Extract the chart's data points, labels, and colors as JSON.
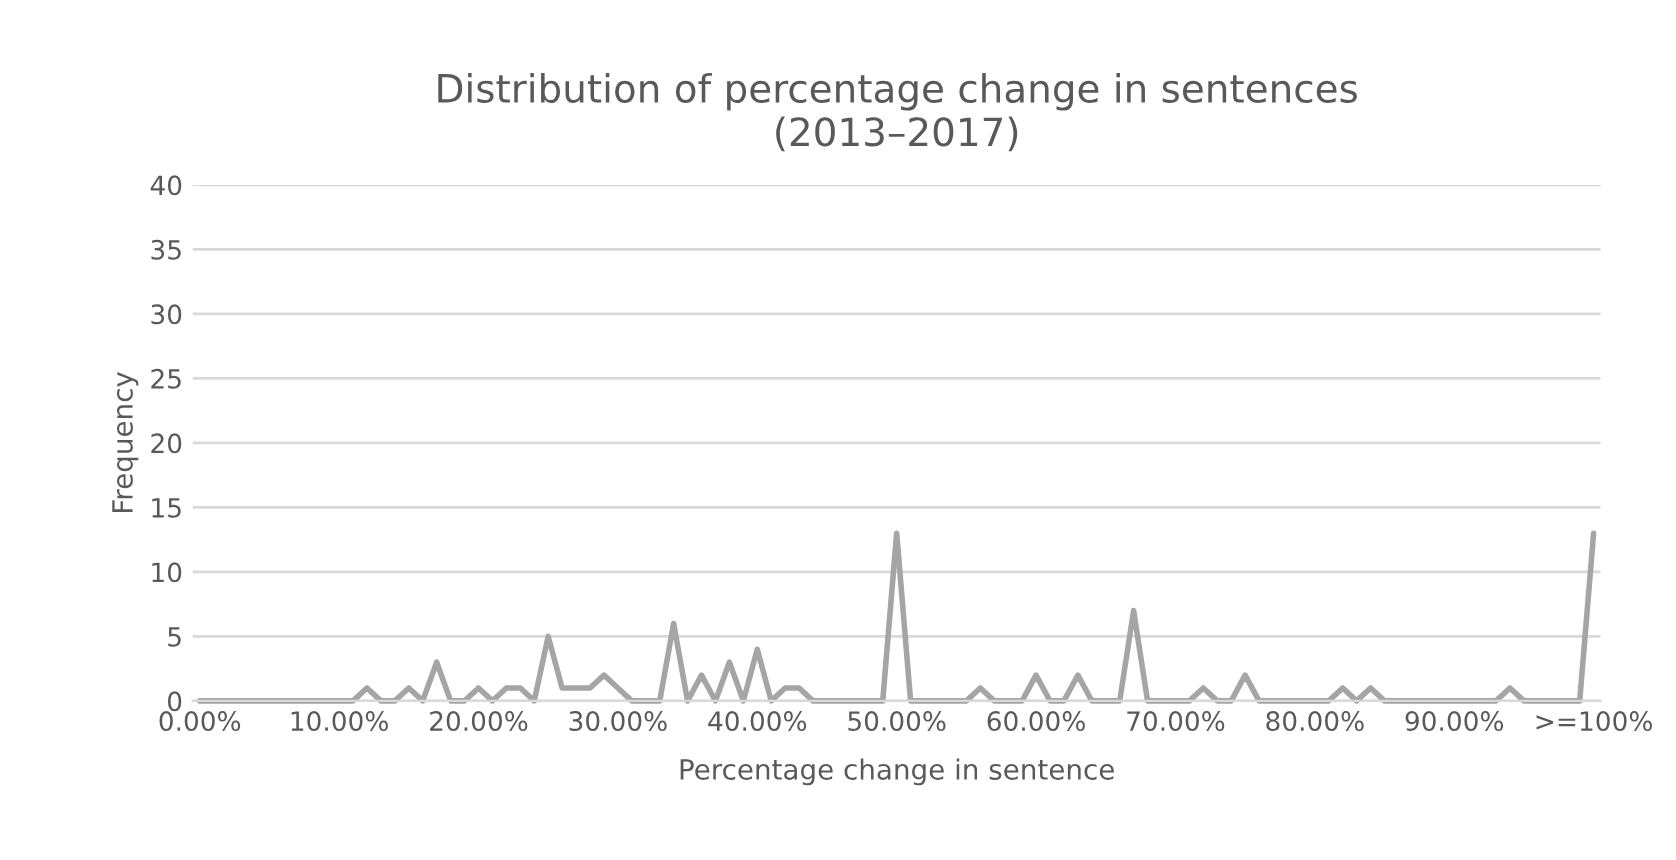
{
  "chart_data": {
    "type": "line",
    "title": "Distribution of percentage change in sentences\n(2013–2017)",
    "xlabel": "Percentage change in sentence",
    "ylabel": "Frequency",
    "categories": [
      "0.00%",
      null,
      null,
      null,
      null,
      null,
      null,
      null,
      null,
      null,
      "10.00%",
      null,
      null,
      null,
      null,
      null,
      null,
      null,
      null,
      null,
      "20.00%",
      null,
      null,
      null,
      null,
      null,
      null,
      null,
      null,
      null,
      "30.00%",
      null,
      null,
      null,
      null,
      null,
      null,
      null,
      null,
      null,
      "40.00%",
      null,
      null,
      null,
      null,
      null,
      null,
      null,
      null,
      null,
      "50.00%",
      null,
      null,
      null,
      null,
      null,
      null,
      null,
      null,
      null,
      "60.00%",
      null,
      null,
      null,
      null,
      null,
      null,
      null,
      null,
      null,
      "70.00%",
      null,
      null,
      null,
      null,
      null,
      null,
      null,
      null,
      null,
      "80.00%",
      null,
      null,
      null,
      null,
      null,
      null,
      null,
      null,
      null,
      "90.00%",
      null,
      null,
      null,
      null,
      null,
      null,
      null,
      null,
      null,
      ">=100%"
    ],
    "series": [
      {
        "color": "#a5a5a5",
        "values": [
          0,
          0,
          0,
          0,
          0,
          0,
          0,
          0,
          0,
          0,
          0,
          0,
          1,
          0,
          0,
          1,
          0,
          3,
          0,
          0,
          1,
          0,
          1,
          1,
          0,
          5,
          1,
          1,
          1,
          2,
          1,
          0,
          0,
          0,
          6,
          0,
          2,
          0,
          3,
          0,
          4,
          0,
          1,
          1,
          0,
          0,
          0,
          0,
          0,
          0,
          13,
          0,
          0,
          0,
          0,
          0,
          1,
          0,
          0,
          0,
          2,
          0,
          0,
          2,
          0,
          0,
          0,
          7,
          0,
          0,
          0,
          0,
          1,
          0,
          0,
          2,
          0,
          0,
          0,
          0,
          0,
          0,
          1,
          0,
          1,
          0,
          0,
          0,
          0,
          0,
          0,
          0,
          0,
          0,
          1,
          0,
          0,
          0,
          0,
          0,
          13
        ]
      }
    ],
    "ylim": [
      0,
      40
    ],
    "yticks": [
      0,
      5,
      10,
      15,
      20,
      25,
      30,
      35,
      40
    ],
    "grid": "y",
    "legend": false,
    "marker": "none",
    "line_style": "solid"
  }
}
